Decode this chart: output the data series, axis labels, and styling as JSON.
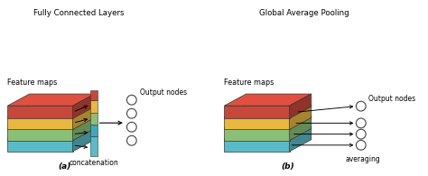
{
  "title_left": "Fully Connected Layers",
  "title_right": "Global Average Pooling",
  "label_feature_maps": "Feature maps",
  "label_concatenation": "concatenation",
  "label_output_nodes": "Output nodes",
  "label_averaging": "averaging",
  "label_a": "(a)",
  "label_b": "(b)",
  "layer_colors": [
    "#C8473A",
    "#E8B840",
    "#8BBF78",
    "#5BBAC8"
  ],
  "concat_colors": [
    "#C8473A",
    "#E8B840",
    "#8BBF78",
    "#5BBAC8",
    "#3DA8BE"
  ],
  "background_color": "#FFFFFF",
  "node_color": "#FFFFFF",
  "node_edge_color": "#444444"
}
